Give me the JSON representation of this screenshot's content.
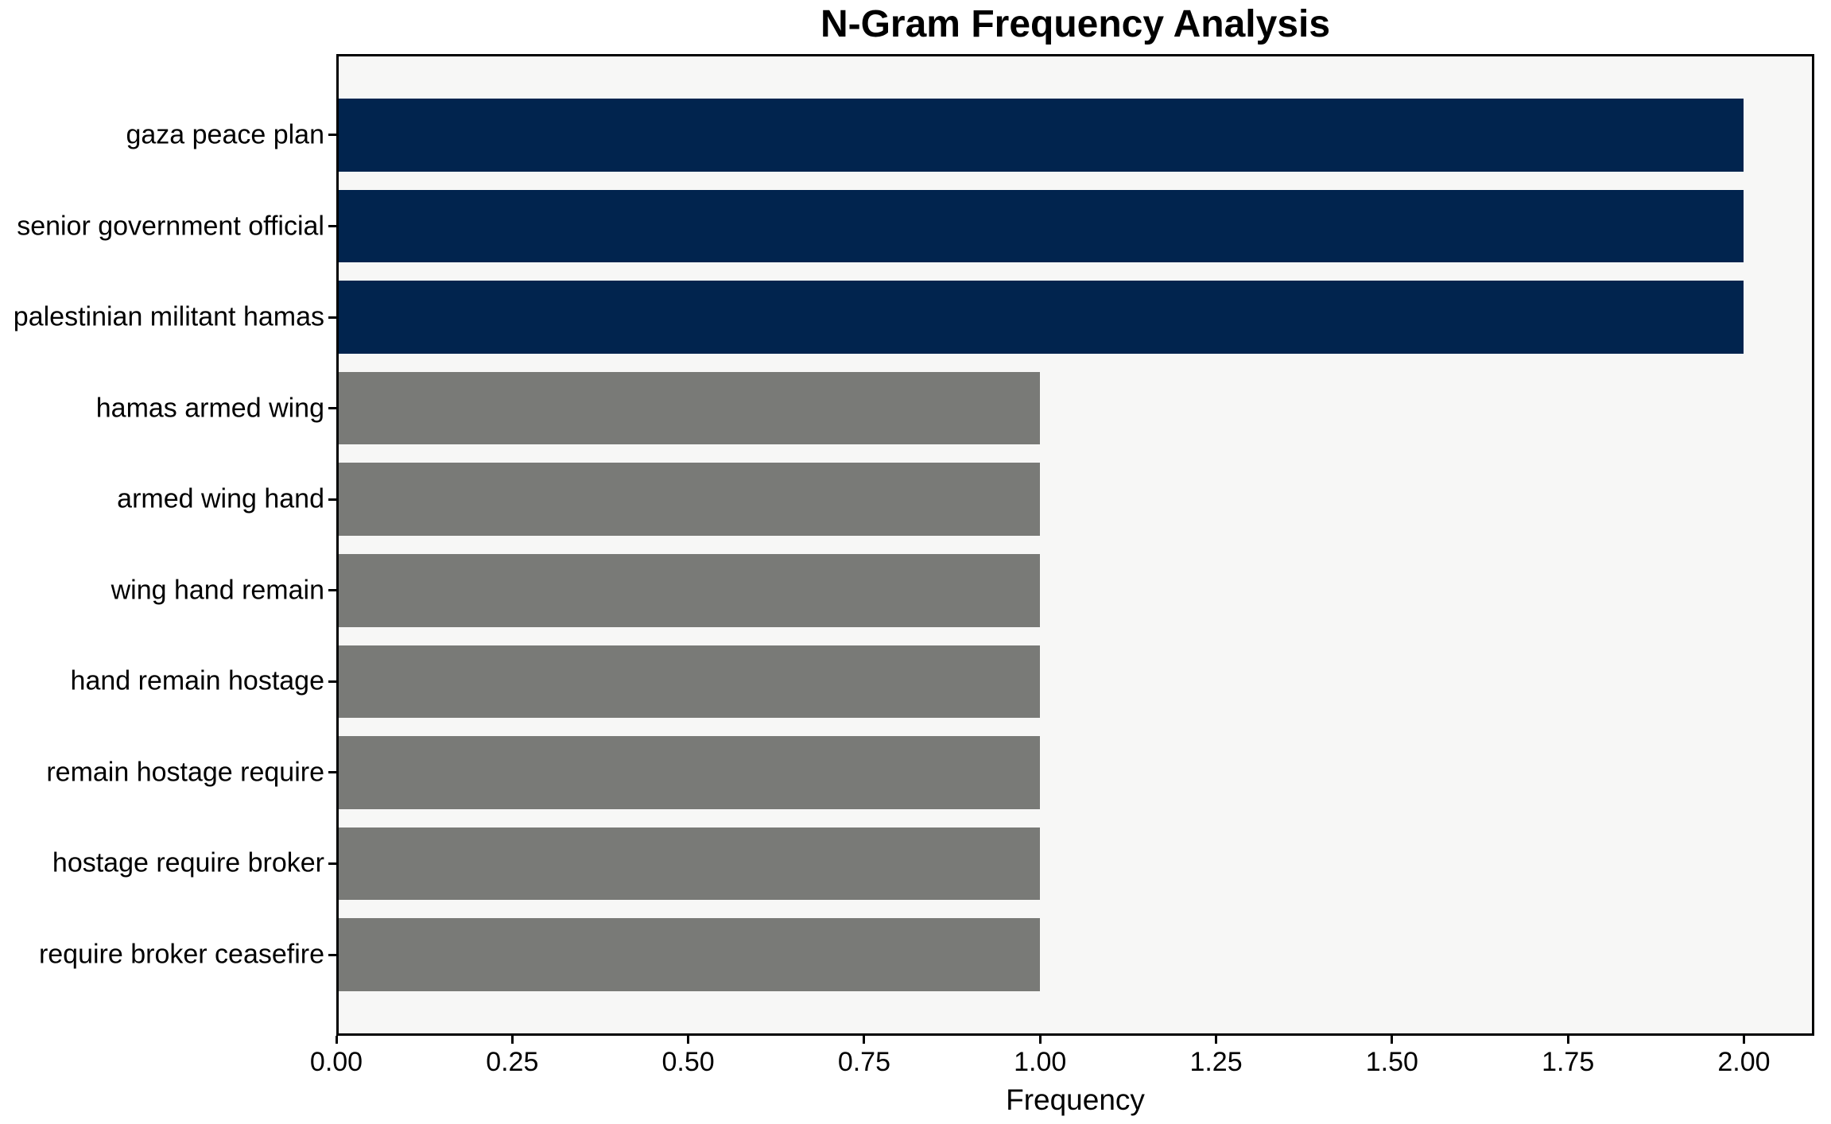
{
  "chart_data": {
    "type": "bar",
    "orientation": "horizontal",
    "title": "N-Gram Frequency Analysis",
    "xlabel": "Frequency",
    "ylabel": "",
    "categories": [
      "gaza peace plan",
      "senior government official",
      "palestinian militant hamas",
      "hamas armed wing",
      "armed wing hand",
      "wing hand remain",
      "hand remain hostage",
      "remain hostage require",
      "hostage require broker",
      "require broker ceasefire"
    ],
    "values": [
      2,
      2,
      2,
      1,
      1,
      1,
      1,
      1,
      1,
      1
    ],
    "bar_colors": [
      "#01244e",
      "#01244e",
      "#01244e",
      "#797a77",
      "#797a77",
      "#797a77",
      "#797a77",
      "#797a77",
      "#797a77",
      "#797a77"
    ],
    "xlim": [
      0,
      2.1
    ],
    "xticks": [
      0,
      0.25,
      0.5,
      0.75,
      1.0,
      1.25,
      1.5,
      1.75,
      2.0
    ],
    "xtick_labels": [
      "0.00",
      "0.25",
      "0.50",
      "0.75",
      "1.00",
      "1.25",
      "1.50",
      "1.75",
      "2.00"
    ],
    "grid": false,
    "legend": "none",
    "bar_height_fraction": 0.8
  },
  "style": {
    "figure_background": "#ffffff",
    "plot_background": "#f7f7f6",
    "spine_color": "#000000",
    "text_color": "#000000",
    "highlight_color": "#01244e",
    "muted_color": "#797a77"
  }
}
